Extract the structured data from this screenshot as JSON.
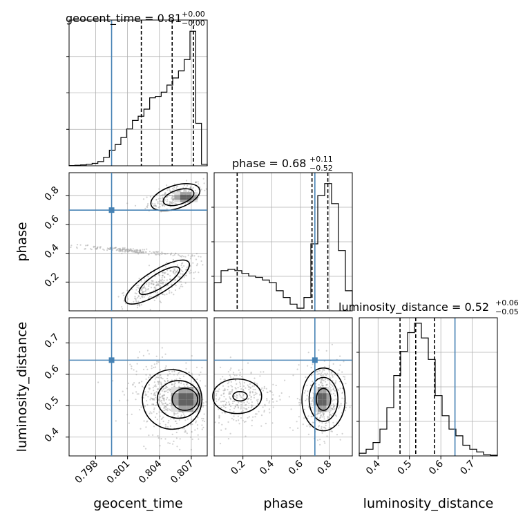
{
  "chart_data": {
    "type": "corner-plot",
    "truth_color": "#4682b4",
    "parameters": [
      "geocent_time",
      "phase",
      "luminosity_distance"
    ],
    "axis_labels": {
      "geocent_time": "geocent_time",
      "phase": "phase",
      "luminosity_distance": "luminosity_distance"
    },
    "ranges": {
      "geocent_time": [
        0.7955,
        0.8085
      ],
      "phase": [
        0.0,
        0.96
      ],
      "luminosity_distance": [
        0.34,
        0.78
      ]
    },
    "ticks": {
      "geocent_time": [
        "0.798",
        "0.801",
        "0.804",
        "0.807"
      ],
      "phase": [
        "0.2",
        "0.4",
        "0.6",
        "0.8"
      ],
      "luminosity_distance": [
        "0.4",
        "0.5",
        "0.6",
        "0.7"
      ]
    },
    "truths": {
      "geocent_time": 0.7995,
      "phase": 0.7,
      "luminosity_distance": 0.645
    },
    "titles": [
      {
        "param": "geocent_time",
        "main": "geocent_time = 0.81",
        "upper": "+0.00",
        "lower": "−0.00"
      },
      {
        "param": "phase",
        "main": "phase = 0.68",
        "upper": "+0.11",
        "lower": "−0.52"
      },
      {
        "param": "luminosity_distance",
        "main": "luminosity_distance = 0.52",
        "upper": "+0.06",
        "lower": "−0.05"
      }
    ],
    "quantiles": {
      "geocent_time": [
        0.8023,
        0.8052,
        0.8072
      ],
      "phase": [
        0.16,
        0.68,
        0.79
      ],
      "luminosity_distance": [
        0.47,
        0.52,
        0.58
      ]
    },
    "histograms": {
      "geocent_time": [
        0.002,
        0.004,
        0.006,
        0.01,
        0.017,
        0.03,
        0.06,
        0.11,
        0.15,
        0.2,
        0.26,
        0.32,
        0.35,
        0.4,
        0.48,
        0.49,
        0.52,
        0.57,
        0.62,
        0.67,
        0.75,
        0.95,
        0.3,
        0.01
      ],
      "phase": [
        0.21,
        0.3,
        0.31,
        0.3,
        0.28,
        0.26,
        0.25,
        0.23,
        0.21,
        0.15,
        0.1,
        0.05,
        0.02,
        0.1,
        0.5,
        0.86,
        0.95,
        0.8,
        0.45,
        0.15
      ],
      "luminosity_distance": [
        0.02,
        0.05,
        0.1,
        0.2,
        0.36,
        0.6,
        0.78,
        0.92,
        0.99,
        0.88,
        0.72,
        0.45,
        0.3,
        0.2,
        0.15,
        0.08,
        0.05,
        0.03,
        0.01,
        0.005
      ]
    },
    "grid": true
  }
}
